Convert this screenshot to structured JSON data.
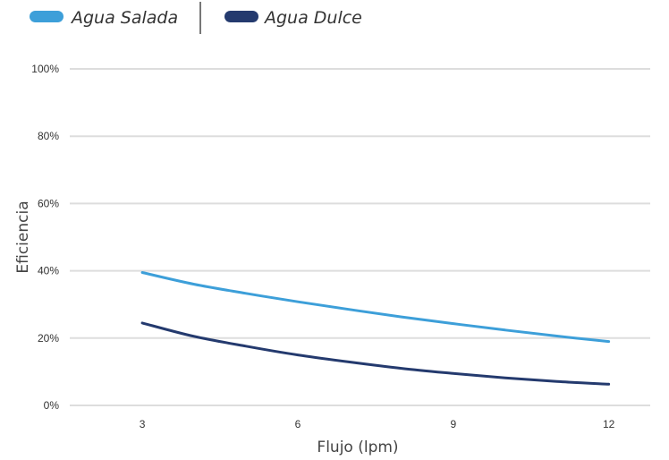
{
  "chart_data": {
    "type": "line",
    "title": "",
    "xlabel": "Flujo (lpm)",
    "ylabel": "Eficiencia",
    "x": [
      3,
      4,
      5,
      6,
      7,
      8,
      9,
      10,
      11,
      12
    ],
    "xticks": [
      "3",
      "6",
      "9",
      "12"
    ],
    "xlim": [
      1.6,
      12.8
    ],
    "yticks": [
      "0%",
      "20%",
      "40%",
      "60%",
      "80%",
      "100%"
    ],
    "ylim": [
      0,
      100
    ],
    "grid": true,
    "legend_position": "top-left",
    "series": [
      {
        "name": "Agua Salada",
        "color": "#3d9fd9",
        "values": [
          39.5,
          36.0,
          33.3,
          30.8,
          28.5,
          26.3,
          24.3,
          22.4,
          20.6,
          19.0
        ]
      },
      {
        "name": "Agua Dulce",
        "color": "#243a6e",
        "values": [
          24.5,
          20.5,
          17.6,
          15.0,
          12.9,
          11.0,
          9.5,
          8.2,
          7.1,
          6.3
        ]
      }
    ]
  }
}
